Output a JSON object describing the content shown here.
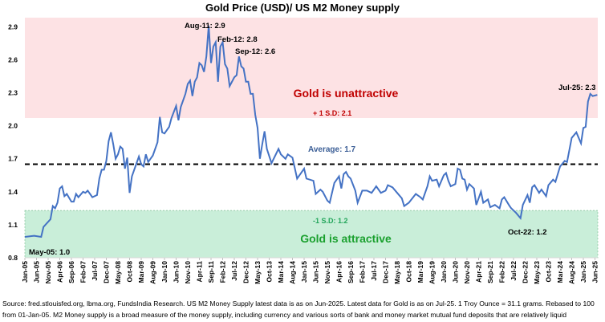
{
  "chart_data": {
    "type": "line",
    "title": "Gold Price (USD)/ US M2 Money supply",
    "ylim": [
      0.8,
      3.0
    ],
    "yticks": [
      0.8,
      1.1,
      1.4,
      1.7,
      2.0,
      2.3,
      2.6,
      2.9
    ],
    "ytick_labels": [
      "0.8",
      "1.1",
      "1.4",
      "1.7",
      "2.0",
      "2.3",
      "2.6",
      "2.9"
    ],
    "xtick_labels": [
      "Jan-05",
      "Jun-05",
      "Nov-05",
      "Apr-06",
      "Sep-06",
      "Feb-07",
      "Jul-07",
      "Dec-07",
      "May-08",
      "Oct-08",
      "Mar-09",
      "Aug-09",
      "Jan-10",
      "Jun-10",
      "Nov-10",
      "Apr-11",
      "Sep-11",
      "Feb-12",
      "Jul-12",
      "Dec-12",
      "May-13",
      "Oct-13",
      "Mar-14",
      "Aug-14",
      "Jan-15",
      "Jun-15",
      "Nov-15",
      "Apr-16",
      "Sep-16",
      "Feb-17",
      "Jul-17",
      "Dec-17",
      "May-18",
      "Oct-18",
      "Mar-19",
      "Aug-19",
      "Jan-20",
      "Jun-20",
      "Nov-20",
      "Apr-21",
      "Sep-21",
      "Feb-22",
      "Jul-22",
      "Dec-22",
      "May-23",
      "Oct-23",
      "Mar-24",
      "Aug-24",
      "Jan-25",
      "Jun-25"
    ],
    "grid": false,
    "series_color": "#4472c4",
    "x": [
      "Jan-05",
      "May-05",
      "Aug-05",
      "Sep-05",
      "Dec-05",
      "Jan-06",
      "Feb-06",
      "Mar-06",
      "Apr-06",
      "May-06",
      "Jun-06",
      "Jul-06",
      "Sep-06",
      "Oct-06",
      "Nov-06",
      "Dec-06",
      "Feb-07",
      "Mar-07",
      "Apr-07",
      "Jun-07",
      "Aug-07",
      "Sep-07",
      "Oct-07",
      "Nov-07",
      "Dec-07",
      "Jan-08",
      "Feb-08",
      "Mar-08",
      "Apr-08",
      "May-08",
      "Jun-08",
      "Jul-08",
      "Aug-08",
      "Sep-08",
      "Oct-08",
      "Nov-08",
      "Feb-09",
      "Mar-09",
      "Apr-09",
      "May-09",
      "Jun-09",
      "Jul-09",
      "Aug-09",
      "Oct-09",
      "Nov-09",
      "Dec-09",
      "Jan-10",
      "Mar-10",
      "Apr-10",
      "Jun-10",
      "Jul-10",
      "Aug-10",
      "Oct-10",
      "Nov-10",
      "Dec-10",
      "Jan-11",
      "Feb-11",
      "Mar-11",
      "Apr-11",
      "May-11",
      "Jun-11",
      "Jul-11",
      "Aug-11",
      "Sep-11",
      "Oct-11",
      "Nov-11",
      "Dec-11",
      "Jan-12",
      "Feb-12",
      "Mar-12",
      "Apr-12",
      "May-12",
      "Jul-12",
      "Aug-12",
      "Sep-12",
      "Oct-12",
      "Nov-12",
      "Dec-12",
      "Jan-13",
      "Feb-13",
      "Mar-13",
      "Apr-13",
      "May-13",
      "Jun-13",
      "Jul-13",
      "Aug-13",
      "Sep-13",
      "Nov-13",
      "Feb-14",
      "Mar-14",
      "May-14",
      "Jun-14",
      "Aug-14",
      "Oct-14",
      "Jan-15",
      "Feb-15",
      "May-15",
      "Jun-15",
      "Aug-15",
      "Sep-15",
      "Nov-15",
      "Dec-15",
      "Feb-16",
      "Apr-16",
      "May-16",
      "Jun-16",
      "Jul-16",
      "Aug-16",
      "Sep-16",
      "Nov-16",
      "Dec-16",
      "Feb-17",
      "Apr-17",
      "Jun-17",
      "Aug-17",
      "Oct-17",
      "Dec-17",
      "Jan-18",
      "Mar-18",
      "May-18",
      "Jul-18",
      "Aug-18",
      "Oct-18",
      "Jan-19",
      "Mar-19",
      "Apr-19",
      "Jun-19",
      "Jul-19",
      "Aug-19",
      "Oct-19",
      "Nov-19",
      "Jan-20",
      "Feb-20",
      "Mar-20",
      "Apr-20",
      "Jun-20",
      "Jul-20",
      "Aug-20",
      "Sep-20",
      "Oct-20",
      "Nov-20",
      "Dec-20",
      "Feb-21",
      "Mar-21",
      "May-21",
      "Jun-21",
      "Aug-21",
      "Sep-21",
      "Nov-21",
      "Jan-22",
      "Feb-22",
      "Mar-22",
      "May-22",
      "Jun-22",
      "Aug-22",
      "Oct-22",
      "Nov-22",
      "Jan-23",
      "Feb-23",
      "Mar-23",
      "Apr-23",
      "Jun-23",
      "Jul-23",
      "Sep-23",
      "Oct-23",
      "Dec-23",
      "Jan-24",
      "Mar-24",
      "May-24",
      "Jun-24",
      "Aug-24",
      "Oct-24",
      "Dec-24",
      "Jan-25",
      "Feb-25",
      "Mar-25",
      "Apr-25",
      "May-25",
      "Jul-25"
    ],
    "values": [
      0.99,
      1.0,
      0.99,
      1.08,
      1.15,
      1.27,
      1.25,
      1.3,
      1.43,
      1.45,
      1.36,
      1.38,
      1.31,
      1.31,
      1.38,
      1.35,
      1.4,
      1.39,
      1.41,
      1.35,
      1.37,
      1.52,
      1.6,
      1.6,
      1.68,
      1.86,
      1.94,
      1.83,
      1.7,
      1.74,
      1.81,
      1.79,
      1.61,
      1.71,
      1.39,
      1.54,
      1.72,
      1.65,
      1.63,
      1.74,
      1.67,
      1.7,
      1.73,
      1.85,
      2.08,
      1.94,
      1.93,
      1.99,
      2.07,
      2.18,
      2.05,
      2.17,
      2.29,
      2.38,
      2.41,
      2.27,
      2.4,
      2.44,
      2.57,
      2.55,
      2.49,
      2.63,
      2.91,
      2.57,
      2.72,
      2.76,
      2.4,
      2.72,
      2.76,
      2.56,
      2.52,
      2.36,
      2.44,
      2.46,
      2.63,
      2.54,
      2.52,
      2.4,
      2.4,
      2.29,
      2.29,
      2.1,
      1.98,
      1.7,
      1.83,
      1.95,
      1.79,
      1.66,
      1.79,
      1.74,
      1.7,
      1.74,
      1.71,
      1.52,
      1.61,
      1.52,
      1.5,
      1.38,
      1.42,
      1.4,
      1.32,
      1.3,
      1.48,
      1.54,
      1.43,
      1.56,
      1.58,
      1.54,
      1.52,
      1.41,
      1.3,
      1.41,
      1.41,
      1.39,
      1.45,
      1.39,
      1.41,
      1.46,
      1.44,
      1.39,
      1.34,
      1.27,
      1.3,
      1.38,
      1.35,
      1.33,
      1.45,
      1.54,
      1.5,
      1.51,
      1.45,
      1.55,
      1.57,
      1.5,
      1.45,
      1.47,
      1.61,
      1.6,
      1.52,
      1.51,
      1.42,
      1.47,
      1.43,
      1.28,
      1.4,
      1.3,
      1.33,
      1.26,
      1.28,
      1.25,
      1.33,
      1.35,
      1.28,
      1.25,
      1.21,
      1.16,
      1.28,
      1.37,
      1.3,
      1.44,
      1.46,
      1.39,
      1.42,
      1.36,
      1.46,
      1.51,
      1.49,
      1.63,
      1.68,
      1.67,
      1.89,
      1.94,
      1.84,
      1.98,
      1.99,
      2.22,
      2.29,
      2.27,
      2.28
    ],
    "average": 1.65,
    "plus_1sd": 2.07,
    "minus_1sd": 1.23,
    "zones": {
      "unattractive_color": "#fde2e4",
      "attractive_color": "#c9eed9"
    },
    "annotations": {
      "aug11": "Aug-11: 2.9",
      "feb12": "Feb-12: 2.8",
      "sep12": "Sep-12: 2.6",
      "jul25": "Jul-25: 2.3",
      "may05": "May-05: 1.0",
      "oct22": "Oct-22: 1.2",
      "unattractive": "Gold is unattractive",
      "attractive": "Gold is attractive",
      "plus_sd": "+ 1 S.D: 2.1",
      "minus_sd": "-1 S.D: 1.2",
      "average": "Average: 1.7"
    }
  },
  "footer": {
    "line1": "Source: fred.stlouisfed.org, lbma.org, FundsIndia Research. US M2 Money Supply latest data is as on Jun-2025. Latest data for Gold is as on Jul-25. 1 Troy Ounce = 31.1 grams.  Rebased to 100",
    "line2": "from 01-Jan-05. M2 Money supply is a broad measure of the money supply, including currency and various sorts of bank and money market mutual fund deposits that are relatively liquid"
  }
}
